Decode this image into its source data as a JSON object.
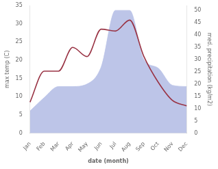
{
  "chart_data": {
    "type": "line",
    "xlabel": "date (month)",
    "ylabel": "max temp (C)",
    "y2label": "med. precipitation (kg/m2)",
    "categories": [
      "Jan",
      "Feb",
      "Mar",
      "Apr",
      "May",
      "Jun",
      "Jul",
      "Aug",
      "Sep",
      "Oct",
      "Nov",
      "Dec"
    ],
    "series": [
      {
        "type": "area",
        "axis": "y2",
        "color": "#bdc5e8",
        "values": [
          9.0,
          14.5,
          19.0,
          19.0,
          20.0,
          27.0,
          50.0,
          50.0,
          30.0,
          26.5,
          19.5,
          19.0
        ]
      },
      {
        "type": "line",
        "color": "#993344",
        "values": [
          8.5,
          17.0,
          17.0,
          23.5,
          21.0,
          28.5,
          28.0,
          31.0,
          21.0,
          14.0,
          9.0,
          7.5
        ]
      }
    ],
    "ylim": [
      0,
      35
    ],
    "yticks": [
      0,
      5,
      10,
      15,
      20,
      25,
      30,
      35
    ],
    "y2lim": [
      0,
      52
    ],
    "y2ticks": [
      0,
      5,
      10,
      15,
      20,
      25,
      30,
      35,
      40,
      45,
      50
    ],
    "grid": false
  }
}
